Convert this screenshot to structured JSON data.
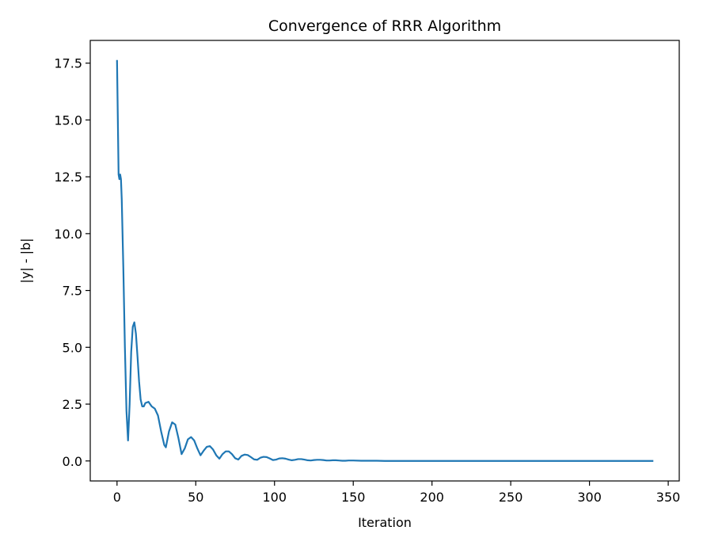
{
  "chart_data": {
    "type": "line",
    "title": "Convergence of RRR Algorithm",
    "xlabel": "Iteration",
    "ylabel": "|y| - |b|",
    "xlim": [
      -17,
      357
    ],
    "ylim": [
      -0.88,
      18.5
    ],
    "xticks": [
      0,
      50,
      100,
      150,
      200,
      250,
      300,
      350
    ],
    "yticks": [
      0.0,
      2.5,
      5.0,
      7.5,
      10.0,
      12.5,
      15.0,
      17.5
    ],
    "xtick_labels": [
      "0",
      "50",
      "100",
      "150",
      "200",
      "250",
      "300",
      "350"
    ],
    "ytick_labels": [
      "0.0",
      "2.5",
      "5.0",
      "7.5",
      "10.0",
      "12.5",
      "15.0",
      "17.5"
    ],
    "grid": false,
    "line_color": "#1f77b4",
    "series": [
      {
        "x": [
          0,
          1,
          1.5,
          2,
          2.5,
          3,
          4,
          5,
          6,
          7,
          8,
          9,
          10,
          11,
          12,
          13,
          14,
          15,
          16,
          17,
          18,
          20,
          22,
          24,
          26,
          28,
          30,
          31,
          33,
          35,
          37,
          39,
          41,
          43,
          45,
          47,
          49,
          51,
          53,
          55,
          57,
          59,
          61,
          63,
          65,
          67,
          69,
          71,
          73,
          75,
          77,
          79,
          81,
          83,
          85,
          87,
          89,
          91,
          93,
          95,
          97,
          99,
          101,
          103,
          105,
          107,
          109,
          111,
          113,
          115,
          117,
          119,
          121,
          123,
          125,
          127,
          129,
          131,
          133,
          135,
          137,
          139,
          141,
          143,
          145,
          147,
          150,
          155,
          160,
          165,
          170,
          175,
          180,
          190,
          200,
          220,
          250,
          280,
          310,
          340
        ],
        "y": [
          17.6,
          12.6,
          12.4,
          12.6,
          12.4,
          11.5,
          8.5,
          5.0,
          2.2,
          0.9,
          2.5,
          4.8,
          5.9,
          6.1,
          5.6,
          4.6,
          3.5,
          2.7,
          2.4,
          2.4,
          2.55,
          2.6,
          2.4,
          2.3,
          2.0,
          1.3,
          0.7,
          0.6,
          1.3,
          1.7,
          1.6,
          1.0,
          0.3,
          0.55,
          0.95,
          1.05,
          0.9,
          0.55,
          0.25,
          0.45,
          0.62,
          0.65,
          0.5,
          0.25,
          0.1,
          0.3,
          0.42,
          0.42,
          0.3,
          0.12,
          0.06,
          0.22,
          0.28,
          0.26,
          0.17,
          0.07,
          0.05,
          0.14,
          0.18,
          0.17,
          0.11,
          0.04,
          0.06,
          0.11,
          0.12,
          0.1,
          0.06,
          0.03,
          0.05,
          0.08,
          0.08,
          0.06,
          0.03,
          0.02,
          0.04,
          0.05,
          0.05,
          0.04,
          0.02,
          0.02,
          0.03,
          0.03,
          0.02,
          0.01,
          0.01,
          0.02,
          0.02,
          0.01,
          0.01,
          0.01,
          0.0,
          0.0,
          0.0,
          0.0,
          0.0,
          0.0,
          0.0,
          0.0,
          0.0,
          0.0
        ]
      }
    ]
  }
}
